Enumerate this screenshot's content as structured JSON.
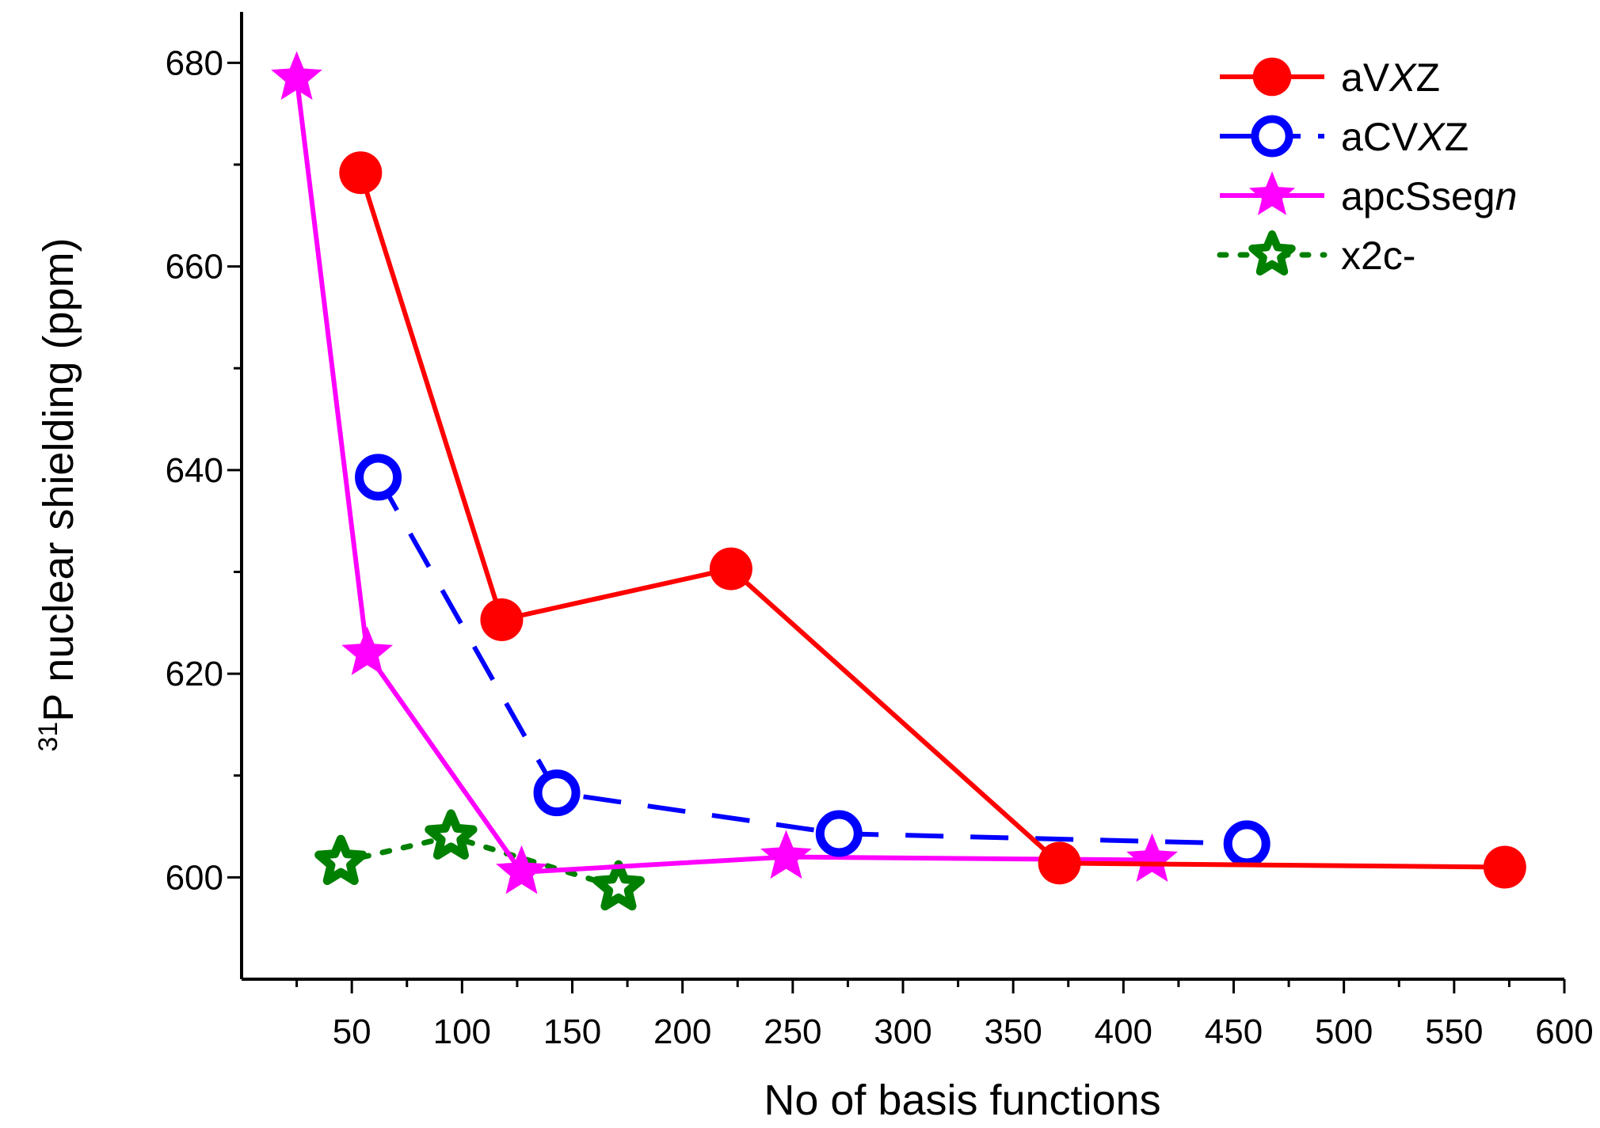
{
  "chart_data": {
    "type": "line",
    "title": "",
    "xlabel": "No of basis functions",
    "ylabel_sup": "31",
    "ylabel_main": "P nuclear shielding  (ppm)",
    "xlim": [
      0,
      600
    ],
    "ylim": [
      590,
      685
    ],
    "x_ticks": [
      50,
      100,
      150,
      200,
      250,
      300,
      350,
      400,
      450,
      500,
      550,
      600
    ],
    "y_ticks": [
      600,
      620,
      640,
      660,
      680
    ],
    "grid": false,
    "legend_position": "top-right",
    "series": [
      {
        "name_prefix": "aV",
        "name_italic": "X",
        "name_suffix": "Z",
        "color": "#ff0000",
        "marker": "filled-circle",
        "line": "solid",
        "points": [
          [
            54,
            669.2
          ],
          [
            118,
            625.3
          ],
          [
            222,
            630.3
          ],
          [
            371,
            601.4
          ],
          [
            573,
            601.0
          ]
        ]
      },
      {
        "name_prefix": "aCV",
        "name_italic": "X",
        "name_suffix": "Z",
        "color": "#0000ff",
        "marker": "open-circle",
        "line": "dashed",
        "points": [
          [
            62,
            639.3
          ],
          [
            143,
            608.3
          ],
          [
            271,
            604.3
          ],
          [
            456,
            603.3
          ]
        ]
      },
      {
        "name_prefix": "apcSseg",
        "name_italic": "n",
        "name_suffix": "",
        "color": "#ff00ff",
        "marker": "filled-star",
        "line": "solid",
        "points": [
          [
            25,
            678.5
          ],
          [
            57,
            622.0
          ],
          [
            127,
            600.5
          ],
          [
            247,
            602.0
          ],
          [
            413,
            601.7
          ]
        ]
      },
      {
        "name_prefix": "x2c-",
        "name_italic": "",
        "name_suffix": "",
        "color": "#008000",
        "marker": "open-star",
        "line": "dotted",
        "points": [
          [
            45,
            601.5
          ],
          [
            95,
            604.0
          ],
          [
            171,
            599.0
          ]
        ]
      }
    ]
  }
}
